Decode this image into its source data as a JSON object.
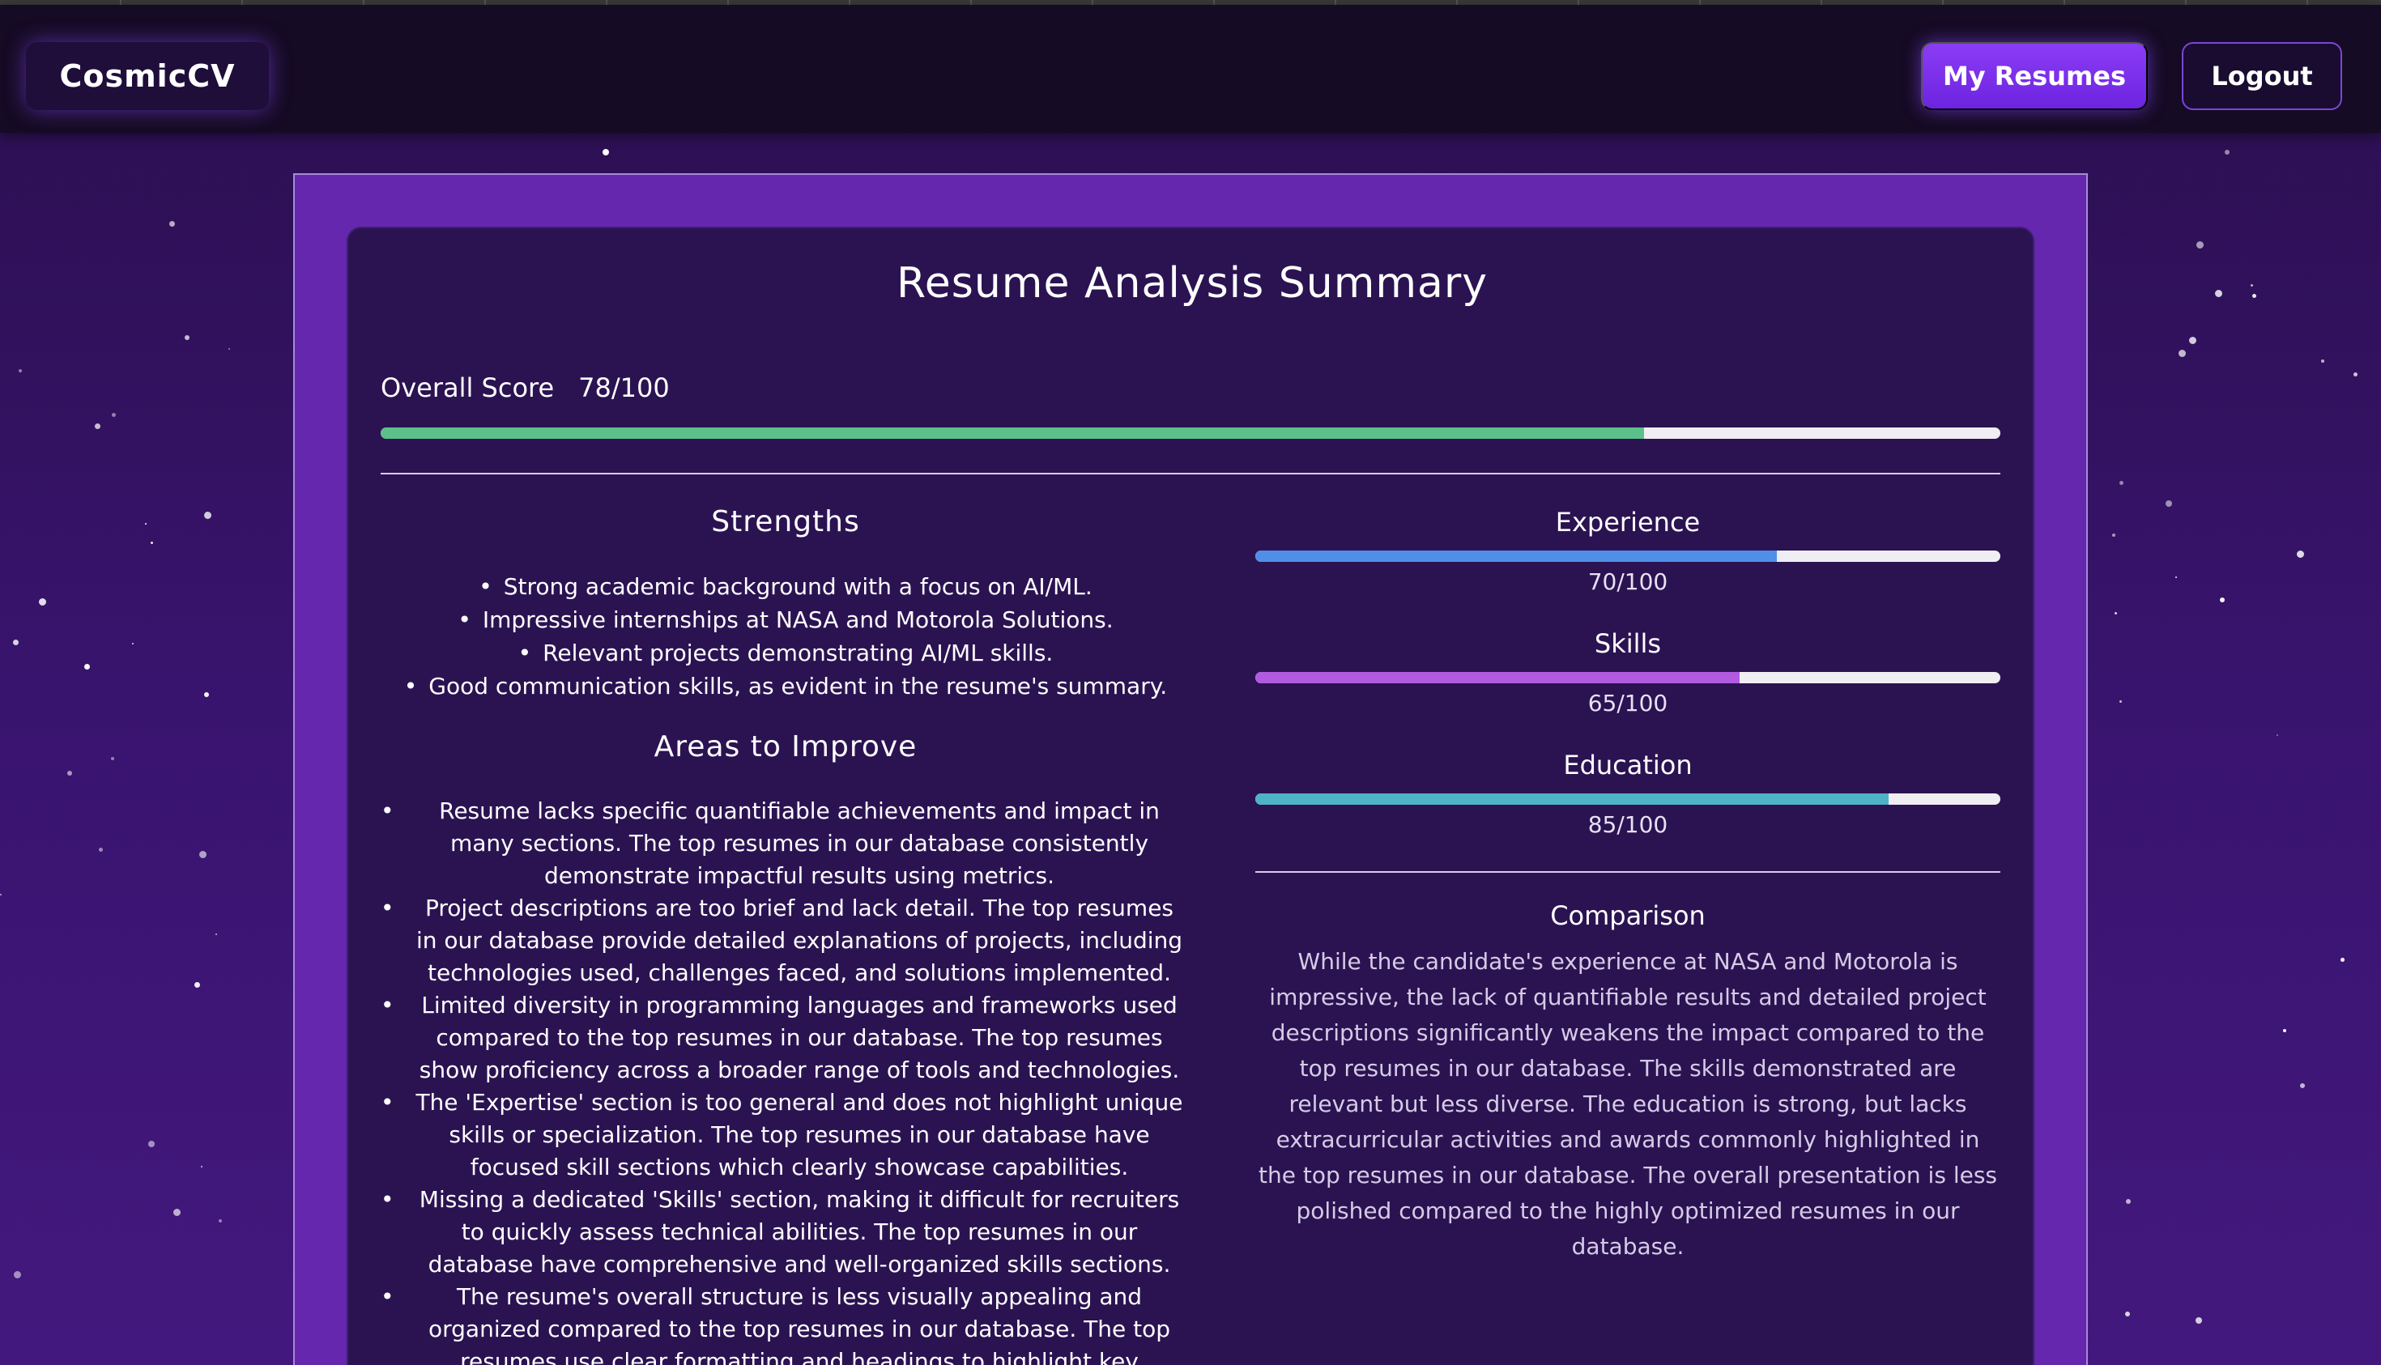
{
  "header": {
    "logo": "CosmicCV",
    "my_resumes_label": "My Resumes",
    "logout_label": "Logout"
  },
  "summary": {
    "title": "Resume Analysis Summary",
    "overall_label": "Overall Score",
    "overall_score_text": "78/100",
    "overall_score": 78,
    "overall_color": "#5cc08a"
  },
  "strengths": {
    "title": "Strengths",
    "items": [
      "Strong academic background with a focus on AI/ML.",
      "Impressive internships at NASA and Motorola Solutions.",
      "Relevant projects demonstrating AI/ML skills.",
      "Good communication skills, as evident in the resume's summary."
    ]
  },
  "improve": {
    "title": "Areas to Improve",
    "items": [
      "Resume lacks specific quantifiable achievements and impact in many sections. The top resumes in our database consistently demonstrate impactful results using metrics.",
      "Project descriptions are too brief and lack detail. The top resumes in our database provide detailed explanations of projects, including technologies used, challenges faced, and solutions implemented.",
      "Limited diversity in programming languages and frameworks used compared to the top resumes in our database. The top resumes show proficiency across a broader range of tools and technologies.",
      "The 'Expertise' section is too general and does not highlight unique skills or specialization. The top resumes in our database have focused skill sections which clearly showcase capabilities.",
      "Missing a dedicated 'Skills' section, making it difficult for recruiters to quickly assess technical abilities. The top resumes in our database have comprehensive and well-organized skills sections.",
      "The resume's overall structure is less visually appealing and organized compared to the top resumes in our database. The top resumes use clear formatting and headings to highlight key information effectively."
    ]
  },
  "metrics": [
    {
      "name": "Experience",
      "score_text": "70/100",
      "score": 70,
      "color": "#4f8fe8"
    },
    {
      "name": "Skills",
      "score_text": "65/100",
      "score": 65,
      "color": "#b25ae0"
    },
    {
      "name": "Education",
      "score_text": "85/100",
      "score": 85,
      "color": "#4fb3c8"
    }
  ],
  "comparison": {
    "title": "Comparison",
    "text": "While the candidate's experience at NASA and Motorola is impressive, the lack of quantifiable results and detailed project descriptions significantly weakens the impact compared to the top resumes in our database. The skills demonstrated are relevant but less diverse. The education is strong, but lacks extracurricular activities and awards commonly highlighted in the top resumes in our database. The overall presentation is less polished compared to the highly optimized resumes in our database."
  }
}
